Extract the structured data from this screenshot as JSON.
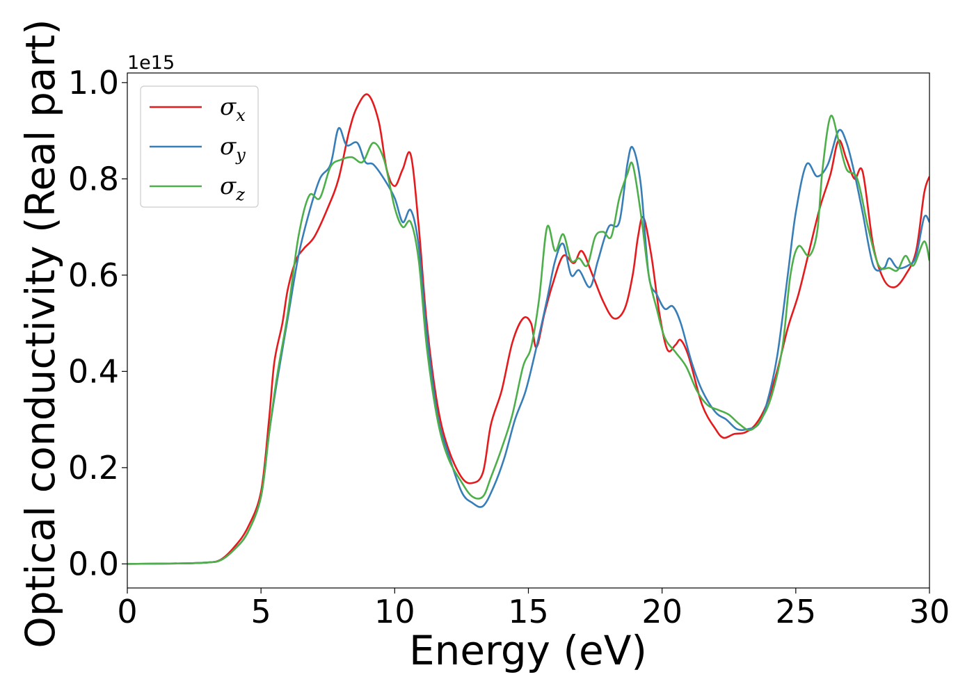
{
  "chart_data": {
    "type": "line",
    "xlabel": "Energy (eV)",
    "ylabel": "Optical conductivity (Real part)",
    "y_offset_label": "1e15",
    "xlim": [
      0,
      30
    ],
    "ylim": [
      -0.05,
      1.02
    ],
    "x_ticks": [
      0,
      5,
      10,
      15,
      20,
      25,
      30
    ],
    "x_tick_labels": [
      "0",
      "5",
      "10",
      "15",
      "20",
      "25",
      "30"
    ],
    "y_ticks": [
      0.0,
      0.2,
      0.4,
      0.6,
      0.8,
      1.0
    ],
    "y_tick_labels": [
      "0.0",
      "0.2",
      "0.4",
      "0.6",
      "0.8",
      "1.0"
    ],
    "grid": false,
    "legend_position": "top-left",
    "series": [
      {
        "name": "σx",
        "symbol": "σ",
        "subscript": "x",
        "color": "#e41a1c",
        "points": [
          [
            0,
            0
          ],
          [
            2,
            0.001
          ],
          [
            3,
            0.003
          ],
          [
            3.5,
            0.009
          ],
          [
            4,
            0.035
          ],
          [
            4.5,
            0.075
          ],
          [
            5,
            0.15
          ],
          [
            5.3,
            0.3
          ],
          [
            5.5,
            0.42
          ],
          [
            5.8,
            0.5
          ],
          [
            6,
            0.57
          ],
          [
            6.3,
            0.63
          ],
          [
            6.6,
            0.655
          ],
          [
            7,
            0.68
          ],
          [
            7.5,
            0.74
          ],
          [
            7.9,
            0.8
          ],
          [
            8.3,
            0.9
          ],
          [
            8.6,
            0.95
          ],
          [
            9,
            0.975
          ],
          [
            9.4,
            0.92
          ],
          [
            9.7,
            0.82
          ],
          [
            10,
            0.785
          ],
          [
            10.3,
            0.82
          ],
          [
            10.6,
            0.85
          ],
          [
            10.9,
            0.7
          ],
          [
            11.2,
            0.5
          ],
          [
            11.6,
            0.33
          ],
          [
            12,
            0.24
          ],
          [
            12.5,
            0.18
          ],
          [
            12.9,
            0.168
          ],
          [
            13.3,
            0.19
          ],
          [
            13.6,
            0.29
          ],
          [
            14,
            0.36
          ],
          [
            14.4,
            0.46
          ],
          [
            14.8,
            0.51
          ],
          [
            15.1,
            0.5
          ],
          [
            15.3,
            0.45
          ],
          [
            15.6,
            0.52
          ],
          [
            15.9,
            0.58
          ],
          [
            16.3,
            0.64
          ],
          [
            16.7,
            0.625
          ],
          [
            17,
            0.65
          ],
          [
            17.4,
            0.6
          ],
          [
            17.8,
            0.545
          ],
          [
            18.2,
            0.51
          ],
          [
            18.6,
            0.53
          ],
          [
            18.9,
            0.6
          ],
          [
            19.1,
            0.68
          ],
          [
            19.3,
            0.72
          ],
          [
            19.6,
            0.64
          ],
          [
            19.9,
            0.52
          ],
          [
            20.2,
            0.445
          ],
          [
            20.5,
            0.455
          ],
          [
            20.7,
            0.465
          ],
          [
            21,
            0.43
          ],
          [
            21.5,
            0.33
          ],
          [
            22,
            0.28
          ],
          [
            22.3,
            0.262
          ],
          [
            22.7,
            0.27
          ],
          [
            23.1,
            0.273
          ],
          [
            23.5,
            0.29
          ],
          [
            23.9,
            0.33
          ],
          [
            24.3,
            0.4
          ],
          [
            24.7,
            0.49
          ],
          [
            25.1,
            0.56
          ],
          [
            25.5,
            0.65
          ],
          [
            25.9,
            0.74
          ],
          [
            26.3,
            0.81
          ],
          [
            26.6,
            0.88
          ],
          [
            26.9,
            0.84
          ],
          [
            27.2,
            0.8
          ],
          [
            27.5,
            0.815
          ],
          [
            27.9,
            0.66
          ],
          [
            28.3,
            0.59
          ],
          [
            28.7,
            0.575
          ],
          [
            29.1,
            0.6
          ],
          [
            29.5,
            0.65
          ],
          [
            29.8,
            0.77
          ],
          [
            30,
            0.805
          ]
        ]
      },
      {
        "name": "σy",
        "symbol": "σ",
        "subscript": "y",
        "color": "#377eb8",
        "points": [
          [
            0,
            0
          ],
          [
            2,
            0.001
          ],
          [
            3,
            0.003
          ],
          [
            3.5,
            0.008
          ],
          [
            4,
            0.03
          ],
          [
            4.5,
            0.065
          ],
          [
            5,
            0.14
          ],
          [
            5.3,
            0.27
          ],
          [
            5.6,
            0.38
          ],
          [
            6,
            0.51
          ],
          [
            6.4,
            0.64
          ],
          [
            6.8,
            0.73
          ],
          [
            7.2,
            0.8
          ],
          [
            7.6,
            0.83
          ],
          [
            7.9,
            0.905
          ],
          [
            8.2,
            0.87
          ],
          [
            8.6,
            0.875
          ],
          [
            8.9,
            0.835
          ],
          [
            9.2,
            0.83
          ],
          [
            9.6,
            0.8
          ],
          [
            10,
            0.76
          ],
          [
            10.3,
            0.71
          ],
          [
            10.6,
            0.735
          ],
          [
            10.9,
            0.66
          ],
          [
            11.2,
            0.48
          ],
          [
            11.6,
            0.31
          ],
          [
            12,
            0.23
          ],
          [
            12.5,
            0.15
          ],
          [
            12.9,
            0.127
          ],
          [
            13.3,
            0.12
          ],
          [
            13.7,
            0.16
          ],
          [
            14.1,
            0.22
          ],
          [
            14.5,
            0.3
          ],
          [
            14.9,
            0.36
          ],
          [
            15.3,
            0.45
          ],
          [
            15.7,
            0.55
          ],
          [
            16,
            0.63
          ],
          [
            16.3,
            0.665
          ],
          [
            16.6,
            0.6
          ],
          [
            16.9,
            0.61
          ],
          [
            17.3,
            0.575
          ],
          [
            17.6,
            0.63
          ],
          [
            18,
            0.7
          ],
          [
            18.4,
            0.71
          ],
          [
            18.7,
            0.83
          ],
          [
            18.9,
            0.865
          ],
          [
            19.2,
            0.79
          ],
          [
            19.5,
            0.6
          ],
          [
            19.8,
            0.56
          ],
          [
            20.1,
            0.53
          ],
          [
            20.4,
            0.535
          ],
          [
            20.7,
            0.5
          ],
          [
            21.1,
            0.42
          ],
          [
            21.5,
            0.36
          ],
          [
            22,
            0.315
          ],
          [
            22.4,
            0.3
          ],
          [
            22.8,
            0.28
          ],
          [
            23.2,
            0.28
          ],
          [
            23.6,
            0.29
          ],
          [
            23.9,
            0.33
          ],
          [
            24.3,
            0.43
          ],
          [
            24.7,
            0.6
          ],
          [
            25,
            0.73
          ],
          [
            25.4,
            0.83
          ],
          [
            25.8,
            0.805
          ],
          [
            26.2,
            0.83
          ],
          [
            26.6,
            0.9
          ],
          [
            26.9,
            0.875
          ],
          [
            27.2,
            0.81
          ],
          [
            27.5,
            0.73
          ],
          [
            27.9,
            0.62
          ],
          [
            28.3,
            0.615
          ],
          [
            28.5,
            0.635
          ],
          [
            28.8,
            0.615
          ],
          [
            29.2,
            0.62
          ],
          [
            29.5,
            0.64
          ],
          [
            29.8,
            0.72
          ],
          [
            30,
            0.71
          ]
        ]
      },
      {
        "name": "σz",
        "symbol": "σ",
        "subscript": "z",
        "color": "#4daf4a",
        "points": [
          [
            0,
            0
          ],
          [
            2,
            0.001
          ],
          [
            3,
            0.003
          ],
          [
            3.5,
            0.008
          ],
          [
            4,
            0.03
          ],
          [
            4.5,
            0.065
          ],
          [
            5,
            0.14
          ],
          [
            5.3,
            0.27
          ],
          [
            5.6,
            0.39
          ],
          [
            6,
            0.52
          ],
          [
            6.4,
            0.68
          ],
          [
            6.8,
            0.765
          ],
          [
            7.2,
            0.76
          ],
          [
            7.6,
            0.825
          ],
          [
            8,
            0.84
          ],
          [
            8.4,
            0.845
          ],
          [
            8.8,
            0.835
          ],
          [
            9.2,
            0.875
          ],
          [
            9.6,
            0.84
          ],
          [
            10,
            0.74
          ],
          [
            10.3,
            0.7
          ],
          [
            10.6,
            0.71
          ],
          [
            10.9,
            0.63
          ],
          [
            11.2,
            0.45
          ],
          [
            11.6,
            0.3
          ],
          [
            12,
            0.22
          ],
          [
            12.5,
            0.17
          ],
          [
            12.9,
            0.14
          ],
          [
            13.3,
            0.14
          ],
          [
            13.6,
            0.18
          ],
          [
            14,
            0.24
          ],
          [
            14.4,
            0.31
          ],
          [
            14.8,
            0.41
          ],
          [
            15.1,
            0.45
          ],
          [
            15.4,
            0.55
          ],
          [
            15.7,
            0.7
          ],
          [
            16,
            0.65
          ],
          [
            16.3,
            0.685
          ],
          [
            16.6,
            0.63
          ],
          [
            16.9,
            0.635
          ],
          [
            17.2,
            0.62
          ],
          [
            17.5,
            0.68
          ],
          [
            17.8,
            0.69
          ],
          [
            18.1,
            0.68
          ],
          [
            18.4,
            0.76
          ],
          [
            18.7,
            0.81
          ],
          [
            18.9,
            0.83
          ],
          [
            19.2,
            0.73
          ],
          [
            19.5,
            0.6
          ],
          [
            19.8,
            0.53
          ],
          [
            20.1,
            0.47
          ],
          [
            20.5,
            0.44
          ],
          [
            20.9,
            0.41
          ],
          [
            21.3,
            0.36
          ],
          [
            21.7,
            0.33
          ],
          [
            22.1,
            0.32
          ],
          [
            22.5,
            0.31
          ],
          [
            22.9,
            0.29
          ],
          [
            23.3,
            0.278
          ],
          [
            23.7,
            0.3
          ],
          [
            24.1,
            0.35
          ],
          [
            24.5,
            0.45
          ],
          [
            24.8,
            0.6
          ],
          [
            25.1,
            0.66
          ],
          [
            25.5,
            0.64
          ],
          [
            25.8,
            0.69
          ],
          [
            26,
            0.82
          ],
          [
            26.3,
            0.93
          ],
          [
            26.6,
            0.88
          ],
          [
            26.9,
            0.82
          ],
          [
            27.3,
            0.8
          ],
          [
            27.7,
            0.7
          ],
          [
            28.1,
            0.62
          ],
          [
            28.5,
            0.615
          ],
          [
            28.8,
            0.61
          ],
          [
            29.1,
            0.64
          ],
          [
            29.4,
            0.62
          ],
          [
            29.8,
            0.67
          ],
          [
            30,
            0.63
          ]
        ]
      }
    ]
  }
}
